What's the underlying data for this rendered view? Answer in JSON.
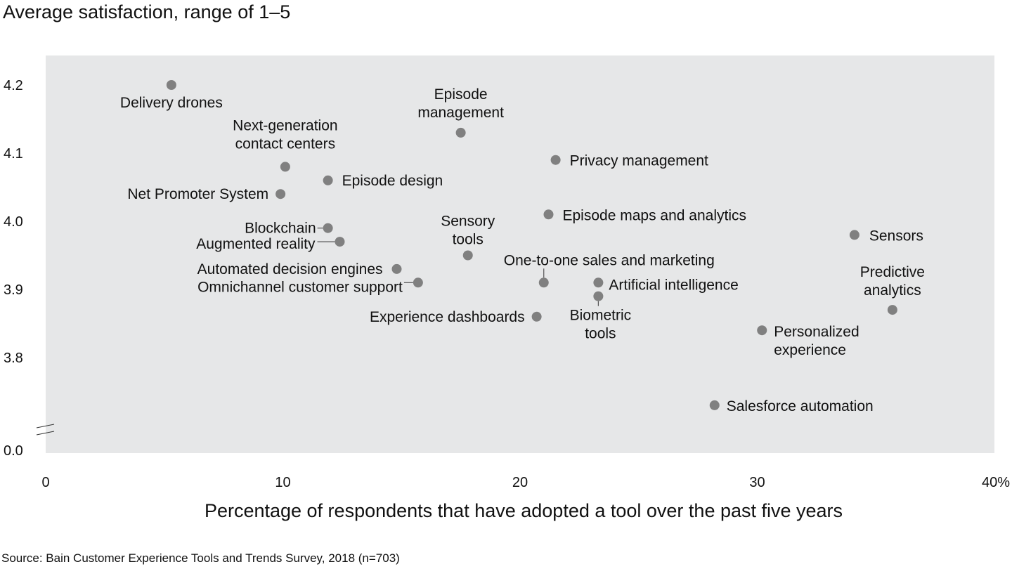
{
  "chart_data": {
    "type": "scatter",
    "title": "Average satisfaction, range of 1–5",
    "xlabel": "Percentage of respondents that have adopted a tool over the past five years",
    "ylabel": "Average satisfaction, range of 1–5",
    "xlim": [
      0,
      40
    ],
    "ylim": [
      3.7,
      4.25
    ],
    "y_break": true,
    "x_ticks": [
      "0",
      "10",
      "20",
      "30",
      "40%"
    ],
    "x_tick_values": [
      0,
      10,
      20,
      30,
      40
    ],
    "y_ticks": [
      "4.2",
      "4.1",
      "4.0",
      "3.9",
      "3.8",
      "0.0"
    ],
    "y_tick_values": [
      4.2,
      4.1,
      4.0,
      3.9,
      3.8
    ],
    "grid": false,
    "legend": "none",
    "point_color": "#808080",
    "background_color": "#e6e7e8",
    "points": [
      {
        "name": "Delivery drones",
        "lines": [
          "Delivery drones"
        ],
        "x": 5.3,
        "y": 4.2
      },
      {
        "name": "Next-generation contact centers",
        "lines": [
          "Next-generation",
          "contact centers"
        ],
        "x": 10.1,
        "y": 4.08
      },
      {
        "name": "Net Promoter System",
        "lines": [
          "Net Promoter System"
        ],
        "x": 9.9,
        "y": 4.04
      },
      {
        "name": "Episode design",
        "lines": [
          "Episode design"
        ],
        "x": 11.9,
        "y": 4.06
      },
      {
        "name": "Episode management",
        "lines": [
          "Episode",
          "management"
        ],
        "x": 17.5,
        "y": 4.13
      },
      {
        "name": "Privacy management",
        "lines": [
          "Privacy management"
        ],
        "x": 21.5,
        "y": 4.09
      },
      {
        "name": "Episode maps and analytics",
        "lines": [
          "Episode maps and analytics"
        ],
        "x": 21.2,
        "y": 4.01
      },
      {
        "name": "Blockchain",
        "lines": [
          "Blockchain"
        ],
        "x": 11.9,
        "y": 3.99
      },
      {
        "name": "Augmented reality",
        "lines": [
          "Augmented reality"
        ],
        "x": 12.4,
        "y": 3.97
      },
      {
        "name": "Sensory tools",
        "lines": [
          "Sensory",
          "tools"
        ],
        "x": 17.8,
        "y": 3.95
      },
      {
        "name": "Automated decision engines",
        "lines": [
          "Automated decision engines"
        ],
        "x": 14.8,
        "y": 3.93
      },
      {
        "name": "Omnichannel customer support",
        "lines": [
          "Omnichannel customer support"
        ],
        "x": 15.7,
        "y": 3.91
      },
      {
        "name": "One-to-one sales and marketing",
        "lines": [
          "One-to-one sales and marketing"
        ],
        "x": 21.0,
        "y": 3.91
      },
      {
        "name": "Artificial intelligence",
        "lines": [
          "Artificial intelligence"
        ],
        "x": 23.3,
        "y": 3.91
      },
      {
        "name": "Biometric tools",
        "lines": [
          "Biometric",
          "tools"
        ],
        "x": 23.3,
        "y": 3.89
      },
      {
        "name": "Experience dashboards",
        "lines": [
          "Experience dashboards"
        ],
        "x": 20.7,
        "y": 3.86
      },
      {
        "name": "Sensors",
        "lines": [
          "Sensors"
        ],
        "x": 34.1,
        "y": 3.98
      },
      {
        "name": "Predictive analytics",
        "lines": [
          "Predictive",
          "analytics"
        ],
        "x": 35.7,
        "y": 3.87
      },
      {
        "name": "Personalized experience",
        "lines": [
          "Personalized",
          "experience"
        ],
        "x": 30.2,
        "y": 3.84
      },
      {
        "name": "Salesforce automation",
        "lines": [
          "Salesforce automation"
        ],
        "x": 28.2,
        "y": 3.73
      }
    ]
  },
  "source": "Source: Bain Customer Experience Tools and Trends Survey, 2018 (n=703)"
}
